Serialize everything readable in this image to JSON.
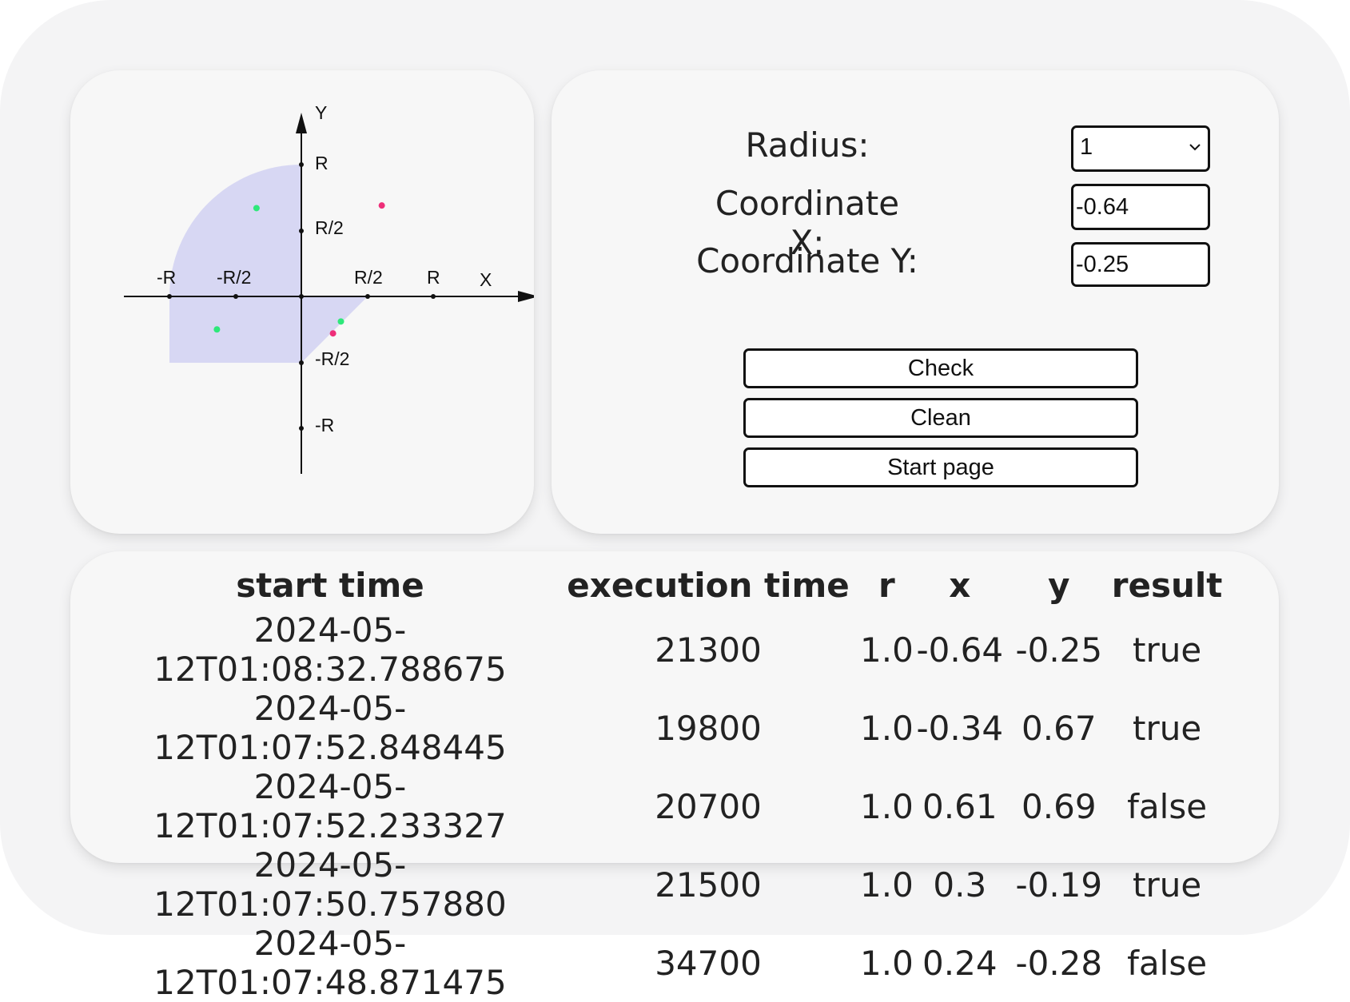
{
  "graph": {
    "axis_x_label": "X",
    "axis_y_label": "Y",
    "x_ticks": [
      "-R",
      "-R/2",
      "R/2",
      "R"
    ],
    "y_ticks": [
      "R",
      "R/2",
      "-R/2",
      "-R"
    ],
    "area_color": "#d7d7f3",
    "points": [
      {
        "x": -0.34,
        "y": 0.67,
        "hit": true
      },
      {
        "x": 0.61,
        "y": 0.69,
        "hit": false
      },
      {
        "x": -0.64,
        "y": -0.25,
        "hit": true
      },
      {
        "x": 0.3,
        "y": -0.19,
        "hit": true
      },
      {
        "x": 0.24,
        "y": -0.28,
        "hit": false
      }
    ],
    "hit_color": "#2ee87a",
    "miss_color": "#ee2f79"
  },
  "form": {
    "radius_label": "Radius:",
    "radius_value": "1",
    "x_label": "Coordinate X:",
    "x_value": "-0.64",
    "y_label": "Coordinate Y:",
    "y_value": "-0.25",
    "check_label": "Check",
    "clean_label": "Clean",
    "start_label": "Start page"
  },
  "table": {
    "headers": [
      "start time",
      "execution time",
      "r",
      "x",
      "y",
      "result"
    ],
    "rows": [
      [
        "2024-05-12T01:08:32.788675",
        "21300",
        "1.0",
        "-0.64",
        "-0.25",
        "true"
      ],
      [
        "2024-05-12T01:07:52.848445",
        "19800",
        "1.0",
        "-0.34",
        "0.67",
        "true"
      ],
      [
        "2024-05-12T01:07:52.233327",
        "20700",
        "1.0",
        "0.61",
        "0.69",
        "false"
      ],
      [
        "2024-05-12T01:07:50.757880",
        "21500",
        "1.0",
        "0.3",
        "-0.19",
        "true"
      ],
      [
        "2024-05-12T01:07:48.871475",
        "34700",
        "1.0",
        "0.24",
        "-0.28",
        "false"
      ]
    ]
  }
}
